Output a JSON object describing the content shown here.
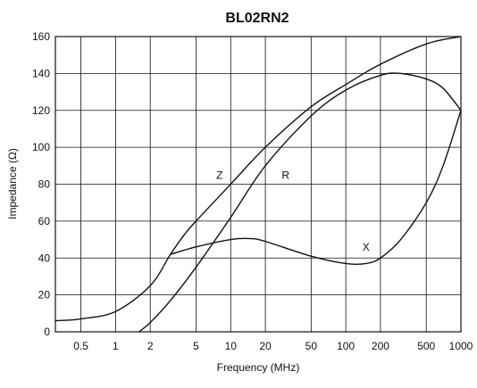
{
  "chart_data": {
    "type": "line",
    "title": "BL02RN2",
    "xlabel": "Frequency (MHz)",
    "ylabel": "Impedance (Ω)",
    "x_scale": "log",
    "xlim": [
      0.3,
      1000
    ],
    "ylim": [
      0,
      160
    ],
    "grid": true,
    "x_ticks": [
      0.5,
      1,
      2,
      5,
      10,
      20,
      50,
      100,
      200,
      500,
      1000
    ],
    "x_tick_labels": [
      "0.5",
      "1",
      "2",
      "5",
      "10",
      "20",
      "50",
      "100",
      "200",
      "500",
      "1000"
    ],
    "y_ticks": [
      0,
      20,
      40,
      60,
      80,
      100,
      120,
      140,
      160
    ],
    "y_tick_labels": [
      "0",
      "20",
      "40",
      "60",
      "80",
      "100",
      "120",
      "140",
      "160"
    ],
    "series": [
      {
        "name": "Z",
        "label_at": [
          8,
          83
        ],
        "color": "#111111",
        "points": [
          [
            0.3,
            6
          ],
          [
            0.5,
            7
          ],
          [
            1,
            11
          ],
          [
            2,
            25
          ],
          [
            3,
            42
          ],
          [
            4,
            53
          ],
          [
            5,
            60
          ],
          [
            10,
            80
          ],
          [
            20,
            100
          ],
          [
            50,
            122
          ],
          [
            100,
            134
          ],
          [
            200,
            145
          ],
          [
            500,
            156
          ],
          [
            1000,
            160
          ]
        ]
      },
      {
        "name": "R",
        "label_at": [
          30,
          83
        ],
        "color": "#111111",
        "points": [
          [
            1.6,
            0
          ],
          [
            2,
            5
          ],
          [
            3,
            17
          ],
          [
            5,
            35
          ],
          [
            10,
            62
          ],
          [
            20,
            90
          ],
          [
            50,
            117
          ],
          [
            100,
            131
          ],
          [
            200,
            139
          ],
          [
            300,
            140
          ],
          [
            500,
            137
          ],
          [
            700,
            132
          ],
          [
            1000,
            120
          ]
        ]
      },
      {
        "name": "X",
        "label_at": [
          150,
          44
        ],
        "color": "#111111",
        "points": [
          [
            3,
            42
          ],
          [
            5,
            46
          ],
          [
            10,
            50
          ],
          [
            15,
            50.5
          ],
          [
            20,
            49
          ],
          [
            50,
            41
          ],
          [
            100,
            37
          ],
          [
            150,
            37
          ],
          [
            200,
            40
          ],
          [
            300,
            50
          ],
          [
            500,
            70
          ],
          [
            700,
            90
          ],
          [
            1000,
            120
          ]
        ]
      }
    ]
  }
}
